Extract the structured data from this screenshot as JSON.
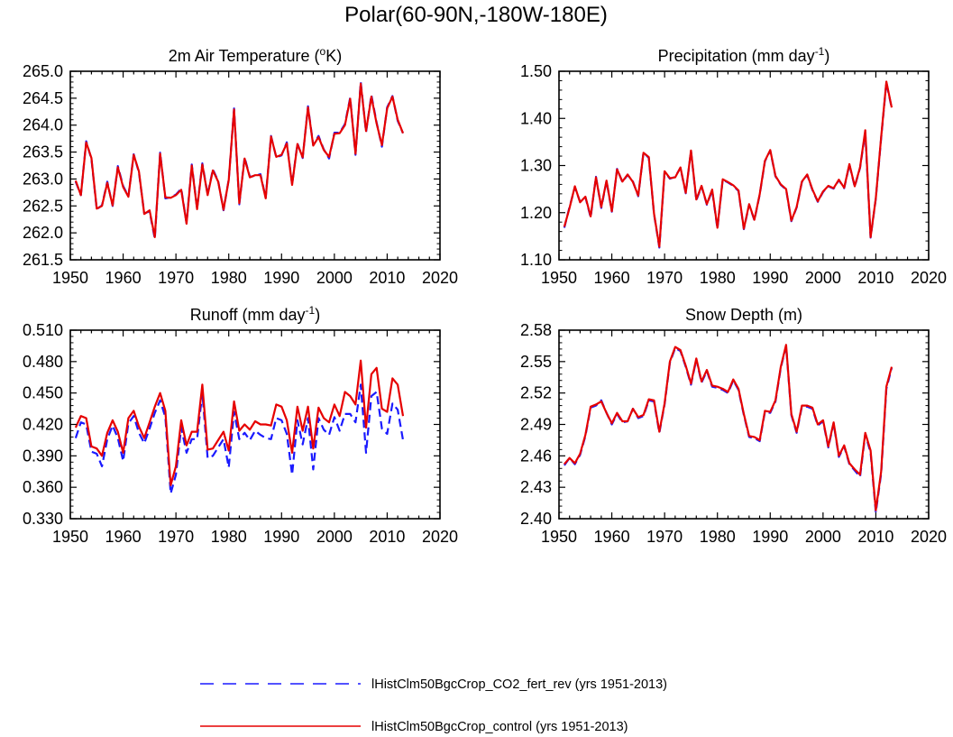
{
  "figure": {
    "title": "Polar(60-90N,-180W-180E)"
  },
  "legend": {
    "placement": "bottom-center",
    "items": [
      {
        "label": "lHistClm50BgcCrop_CO2_fert_rev (yrs 1951-2013)",
        "color": "#1a1aff",
        "style": "dashed"
      },
      {
        "label": "lHistClm50BgcCrop_control (yrs 1951-2013)",
        "color": "#e60000",
        "style": "solid"
      }
    ]
  },
  "chart_data": [
    {
      "type": "line",
      "title": "2m Air Temperature (ºK)",
      "title_main": "2m Air Temperature (",
      "title_sup": "o",
      "title_end": "K)",
      "xlim": [
        1950,
        2020
      ],
      "xticks": [
        1950,
        1960,
        1970,
        1980,
        1990,
        2000,
        2010,
        2020
      ],
      "xtick_labels": [
        "1950",
        "1960",
        "1970",
        "1980",
        "1990",
        "2000",
        "2010",
        "2020"
      ],
      "ylim": [
        261.5,
        265.0
      ],
      "yticks": [
        261.5,
        262.0,
        262.5,
        263.0,
        263.5,
        264.0,
        264.5,
        265.0
      ],
      "ytick_labels": [
        "261.5",
        "262.0",
        "262.5",
        "263.0",
        "263.5",
        "264.0",
        "264.5",
        "265.0"
      ],
      "grid": false,
      "x_start": 1951,
      "series": [
        {
          "name": "lHistClm50BgcCrop_control (yrs 1951-2013)",
          "color": "#e60000",
          "style": "solid",
          "values": [
            262.97,
            262.7,
            263.68,
            263.39,
            262.45,
            262.5,
            262.93,
            262.51,
            263.22,
            262.85,
            262.67,
            263.45,
            263.14,
            262.35,
            262.42,
            261.92,
            263.47,
            262.66,
            262.65,
            262.7,
            262.8,
            262.17,
            263.25,
            262.44,
            263.27,
            262.7,
            263.16,
            262.95,
            262.43,
            262.98,
            264.29,
            262.55,
            263.38,
            263.03,
            263.07,
            263.07,
            262.64,
            263.79,
            263.41,
            263.45,
            263.66,
            262.89,
            263.65,
            263.4,
            264.33,
            263.62,
            263.78,
            263.54,
            263.41,
            263.84,
            263.85,
            264.0,
            264.49,
            263.47,
            264.77,
            263.89,
            264.53,
            264.03,
            263.63,
            264.31,
            264.53,
            264.1,
            263.85
          ]
        },
        {
          "name": "lHistClm50BgcCrop_CO2_fert_rev (yrs 1951-2013)",
          "color": "#1a1aff",
          "style": "dashed",
          "values": [
            262.95,
            262.7,
            263.7,
            263.37,
            262.44,
            262.51,
            262.95,
            262.5,
            263.24,
            262.87,
            262.68,
            263.46,
            263.12,
            262.36,
            262.4,
            261.89,
            263.49,
            262.64,
            262.66,
            262.71,
            262.82,
            262.18,
            263.27,
            262.45,
            263.29,
            262.71,
            263.18,
            262.96,
            262.42,
            262.99,
            264.31,
            262.53,
            263.4,
            263.04,
            263.06,
            263.09,
            262.65,
            263.8,
            263.4,
            263.44,
            263.68,
            262.9,
            263.66,
            263.39,
            264.35,
            263.63,
            263.8,
            263.55,
            263.38,
            263.86,
            263.86,
            264.02,
            264.51,
            263.45,
            264.8,
            263.87,
            264.56,
            264.05,
            263.6,
            264.33,
            264.54,
            264.08,
            263.85
          ]
        }
      ]
    },
    {
      "type": "line",
      "title": "Precipitation (mm day-1)",
      "title_main": "Precipitation (mm day",
      "title_sup": "-1",
      "title_end": ")",
      "xlim": [
        1950,
        2020
      ],
      "xticks": [
        1950,
        1960,
        1970,
        1980,
        1990,
        2000,
        2010,
        2020
      ],
      "xtick_labels": [
        "1950",
        "1960",
        "1970",
        "1980",
        "1990",
        "2000",
        "2010",
        "2020"
      ],
      "ylim": [
        1.1,
        1.5
      ],
      "yticks": [
        1.1,
        1.2,
        1.3,
        1.4,
        1.5
      ],
      "ytick_labels": [
        "1.10",
        "1.20",
        "1.30",
        "1.40",
        "1.50"
      ],
      "grid": false,
      "x_start": 1951,
      "series": [
        {
          "name": "lHistClm50BgcCrop_control (yrs 1951-2013)",
          "color": "#e60000",
          "style": "solid",
          "values": [
            1.17,
            1.21,
            1.256,
            1.222,
            1.234,
            1.192,
            1.275,
            1.212,
            1.268,
            1.203,
            1.292,
            1.266,
            1.281,
            1.265,
            1.236,
            1.327,
            1.318,
            1.198,
            1.128,
            1.288,
            1.273,
            1.275,
            1.296,
            1.242,
            1.332,
            1.228,
            1.257,
            1.218,
            1.249,
            1.168,
            1.271,
            1.265,
            1.258,
            1.247,
            1.166,
            1.218,
            1.185,
            1.239,
            1.31,
            1.333,
            1.278,
            1.26,
            1.25,
            1.183,
            1.212,
            1.266,
            1.281,
            1.249,
            1.224,
            1.245,
            1.257,
            1.252,
            1.27,
            1.253,
            1.303,
            1.256,
            1.296,
            1.375,
            1.148,
            1.231,
            1.36,
            1.478,
            1.423
          ]
        },
        {
          "name": "lHistClm50BgcCrop_CO2_fert_rev (yrs 1951-2013)",
          "color": "#1a1aff",
          "style": "dashed",
          "values": [
            1.168,
            1.212,
            1.254,
            1.223,
            1.233,
            1.19,
            1.276,
            1.21,
            1.267,
            1.202,
            1.293,
            1.265,
            1.28,
            1.266,
            1.235,
            1.328,
            1.316,
            1.197,
            1.126,
            1.287,
            1.272,
            1.276,
            1.295,
            1.241,
            1.331,
            1.226,
            1.256,
            1.217,
            1.247,
            1.166,
            1.27,
            1.264,
            1.257,
            1.246,
            1.165,
            1.217,
            1.184,
            1.238,
            1.309,
            1.332,
            1.277,
            1.259,
            1.249,
            1.182,
            1.211,
            1.265,
            1.28,
            1.248,
            1.223,
            1.244,
            1.256,
            1.251,
            1.269,
            1.252,
            1.302,
            1.255,
            1.295,
            1.37,
            1.147,
            1.23,
            1.358,
            1.476,
            1.422
          ]
        }
      ]
    },
    {
      "type": "line",
      "title": "Runoff (mm day-1)",
      "title_main": "Runoff (mm day",
      "title_sup": "-1",
      "title_end": ")",
      "xlim": [
        1950,
        2020
      ],
      "xticks": [
        1950,
        1960,
        1970,
        1980,
        1990,
        2000,
        2010,
        2020
      ],
      "xtick_labels": [
        "1950",
        "1960",
        "1970",
        "1980",
        "1990",
        "2000",
        "2010",
        "2020"
      ],
      "ylim": [
        0.33,
        0.51
      ],
      "yticks": [
        0.33,
        0.36,
        0.39,
        0.42,
        0.45,
        0.48,
        0.51
      ],
      "ytick_labels": [
        "0.330",
        "0.360",
        "0.390",
        "0.420",
        "0.450",
        "0.480",
        "0.510"
      ],
      "grid": false,
      "x_start": 1951,
      "series": [
        {
          "name": "lHistClm50BgcCrop_control (yrs 1951-2013)",
          "color": "#e60000",
          "style": "solid",
          "values": [
            0.417,
            0.428,
            0.426,
            0.399,
            0.397,
            0.39,
            0.412,
            0.424,
            0.413,
            0.393,
            0.426,
            0.433,
            0.418,
            0.407,
            0.422,
            0.437,
            0.45,
            0.433,
            0.362,
            0.38,
            0.424,
            0.4,
            0.413,
            0.413,
            0.458,
            0.396,
            0.397,
            0.405,
            0.413,
            0.395,
            0.442,
            0.414,
            0.42,
            0.415,
            0.423,
            0.42,
            0.42,
            0.419,
            0.439,
            0.437,
            0.424,
            0.393,
            0.437,
            0.414,
            0.437,
            0.397,
            0.436,
            0.426,
            0.422,
            0.439,
            0.428,
            0.451,
            0.447,
            0.439,
            0.481,
            0.417,
            0.468,
            0.474,
            0.435,
            0.432,
            0.464,
            0.458,
            0.428
          ]
        },
        {
          "name": "lHistClm50BgcCrop_CO2_fert_rev (yrs 1951-2013)",
          "color": "#1a1aff",
          "style": "dashed",
          "values": [
            0.407,
            0.422,
            0.42,
            0.394,
            0.392,
            0.38,
            0.406,
            0.419,
            0.407,
            0.385,
            0.421,
            0.428,
            0.412,
            0.402,
            0.416,
            0.431,
            0.443,
            0.427,
            0.354,
            0.372,
            0.417,
            0.393,
            0.406,
            0.406,
            0.45,
            0.388,
            0.39,
            0.398,
            0.406,
            0.379,
            0.432,
            0.406,
            0.412,
            0.405,
            0.414,
            0.41,
            0.407,
            0.406,
            0.426,
            0.424,
            0.411,
            0.372,
            0.424,
            0.401,
            0.426,
            0.377,
            0.426,
            0.415,
            0.41,
            0.427,
            0.414,
            0.43,
            0.43,
            0.422,
            0.458,
            0.393,
            0.447,
            0.451,
            0.416,
            0.411,
            0.44,
            0.434,
            0.405
          ]
        }
      ]
    },
    {
      "type": "line",
      "title": "Snow Depth (m)",
      "title_main": "Snow Depth (m)",
      "title_sup": "",
      "title_end": "",
      "xlim": [
        1950,
        2020
      ],
      "xticks": [
        1950,
        1960,
        1970,
        1980,
        1990,
        2000,
        2010,
        2020
      ],
      "xtick_labels": [
        "1950",
        "1960",
        "1970",
        "1980",
        "1990",
        "2000",
        "2010",
        "2020"
      ],
      "ylim": [
        2.4,
        2.58
      ],
      "yticks": [
        2.4,
        2.43,
        2.46,
        2.49,
        2.52,
        2.55,
        2.58
      ],
      "ytick_labels": [
        "2.40",
        "2.43",
        "2.46",
        "2.49",
        "2.52",
        "2.55",
        "2.58"
      ],
      "grid": false,
      "x_start": 1951,
      "series": [
        {
          "name": "lHistClm50BgcCrop_control (yrs 1951-2013)",
          "color": "#e60000",
          "style": "solid",
          "values": [
            2.452,
            2.458,
            2.453,
            2.462,
            2.48,
            2.507,
            2.509,
            2.512,
            2.501,
            2.491,
            2.501,
            2.493,
            2.493,
            2.505,
            2.497,
            2.499,
            2.514,
            2.513,
            2.483,
            2.51,
            2.55,
            2.564,
            2.561,
            2.546,
            2.529,
            2.553,
            2.531,
            2.542,
            2.527,
            2.526,
            2.524,
            2.521,
            2.533,
            2.524,
            2.5,
            2.479,
            2.478,
            2.475,
            2.503,
            2.502,
            2.513,
            2.545,
            2.566,
            2.5,
            2.483,
            2.508,
            2.508,
            2.506,
            2.49,
            2.494,
            2.469,
            2.492,
            2.46,
            2.47,
            2.453,
            2.447,
            2.442,
            2.482,
            2.465,
            2.408,
            2.445,
            2.526,
            2.545
          ]
        },
        {
          "name": "lHistClm50BgcCrop_CO2_fert_rev (yrs 1951-2013)",
          "color": "#1a1aff",
          "style": "dashed",
          "values": [
            2.451,
            2.458,
            2.452,
            2.461,
            2.479,
            2.506,
            2.508,
            2.513,
            2.501,
            2.49,
            2.5,
            2.492,
            2.493,
            2.505,
            2.496,
            2.498,
            2.513,
            2.512,
            2.482,
            2.509,
            2.549,
            2.563,
            2.56,
            2.545,
            2.528,
            2.552,
            2.53,
            2.541,
            2.526,
            2.525,
            2.523,
            2.52,
            2.532,
            2.523,
            2.499,
            2.478,
            2.477,
            2.474,
            2.502,
            2.501,
            2.512,
            2.544,
            2.565,
            2.499,
            2.482,
            2.507,
            2.507,
            2.505,
            2.489,
            2.493,
            2.468,
            2.491,
            2.459,
            2.469,
            2.452,
            2.446,
            2.44,
            2.481,
            2.463,
            2.406,
            2.443,
            2.524,
            2.544
          ]
        }
      ]
    }
  ]
}
